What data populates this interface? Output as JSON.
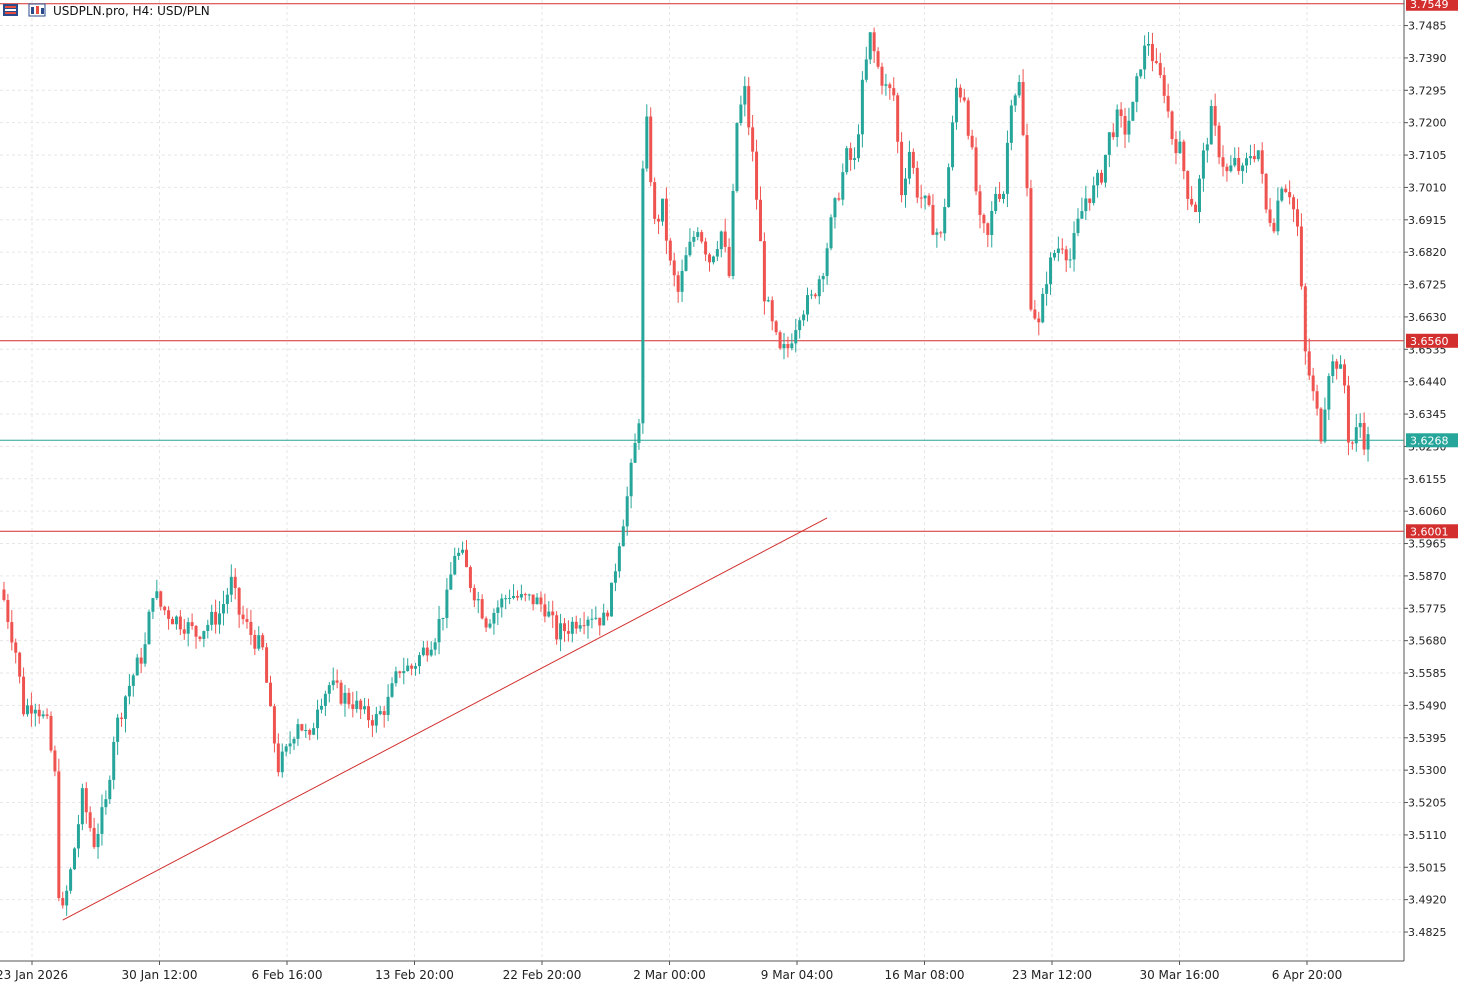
{
  "header": {
    "symbol_title": "USDPLN.pro, H4:  USD/PLN"
  },
  "colors": {
    "bull": "#26a69a",
    "bear": "#ef5350",
    "level_line": "#d32f2f",
    "current_line": "#26a69a",
    "grid": "#e6e6e6",
    "axis": "#555555"
  },
  "icons": [
    "bars-menu-icon",
    "chart-type-icon"
  ],
  "chart_data": {
    "type": "candlestick",
    "symbol": "USDPLN.pro",
    "timeframe": "H4",
    "description": "USD/PLN",
    "y_range": [
      3.474,
      3.756
    ],
    "price_labels": [
      "3.7485",
      "3.7390",
      "3.7295",
      "3.7200",
      "3.7105",
      "3.7010",
      "3.6915",
      "3.6820",
      "3.6725",
      "3.6630",
      "3.6535",
      "3.6440",
      "3.6345",
      "3.6250",
      "3.6155",
      "3.6060",
      "3.5965",
      "3.5870",
      "3.5775",
      "3.5680",
      "3.5585",
      "3.5490",
      "3.5395",
      "3.5300",
      "3.5205",
      "3.5110",
      "3.5015",
      "3.4920",
      "3.4825"
    ],
    "time_labels": [
      "23 Jan 2026",
      "30 Jan 12:00",
      "6 Feb 16:00",
      "13 Feb 20:00",
      "22 Feb 20:00",
      "2 Mar 00:00",
      "9 Mar 04:00",
      "16 Mar 08:00",
      "23 Mar 12:00",
      "30 Mar 16:00",
      "6 Apr 20:00"
    ],
    "horizontal_levels": [
      {
        "value": 3.7549,
        "label": "3.7549"
      },
      {
        "value": 3.656,
        "label": "3.6560"
      },
      {
        "value": 3.6001,
        "label": "3.6001"
      }
    ],
    "current_price": {
      "value": 3.6268,
      "label": "3.6268"
    },
    "trendline": {
      "from": {
        "bar": 15,
        "price": 3.486
      },
      "to": {
        "bar": 210,
        "price": 3.604
      }
    },
    "bars_shown": 340,
    "close_path": [
      [
        0,
        3.58
      ],
      [
        3,
        3.565
      ],
      [
        5,
        3.548
      ],
      [
        8,
        3.55
      ],
      [
        11,
        3.543
      ],
      [
        13,
        3.528
      ],
      [
        14,
        3.495
      ],
      [
        15,
        3.488
      ],
      [
        17,
        3.5
      ],
      [
        20,
        3.522
      ],
      [
        23,
        3.509
      ],
      [
        26,
        3.52
      ],
      [
        28,
        3.54
      ],
      [
        31,
        3.552
      ],
      [
        33,
        3.558
      ],
      [
        36,
        3.566
      ],
      [
        38,
        3.583
      ],
      [
        40,
        3.578
      ],
      [
        43,
        3.575
      ],
      [
        46,
        3.573
      ],
      [
        49,
        3.57
      ],
      [
        52,
        3.573
      ],
      [
        55,
        3.576
      ],
      [
        58,
        3.585
      ],
      [
        60,
        3.576
      ],
      [
        63,
        3.57
      ],
      [
        66,
        3.565
      ],
      [
        68,
        3.546
      ],
      [
        70,
        3.531
      ],
      [
        72,
        3.535
      ],
      [
        75,
        3.545
      ],
      [
        78,
        3.538
      ],
      [
        80,
        3.55
      ],
      [
        83,
        3.555
      ],
      [
        86,
        3.552
      ],
      [
        89,
        3.55
      ],
      [
        92,
        3.546
      ],
      [
        95,
        3.545
      ],
      [
        98,
        3.55
      ],
      [
        101,
        3.56
      ],
      [
        104,
        3.56
      ],
      [
        107,
        3.565
      ],
      [
        110,
        3.57
      ],
      [
        113,
        3.58
      ],
      [
        115,
        3.594
      ],
      [
        117,
        3.592
      ],
      [
        119,
        3.585
      ],
      [
        121,
        3.58
      ],
      [
        123,
        3.574
      ],
      [
        126,
        3.578
      ],
      [
        129,
        3.582
      ],
      [
        132,
        3.58
      ],
      [
        135,
        3.58
      ],
      [
        138,
        3.578
      ],
      [
        141,
        3.57
      ],
      [
        144,
        3.572
      ],
      [
        147,
        3.575
      ],
      [
        150,
        3.576
      ],
      [
        153,
        3.574
      ],
      [
        155,
        3.582
      ],
      [
        157,
        3.598
      ],
      [
        159,
        3.61
      ],
      [
        161,
        3.625
      ],
      [
        162,
        3.634
      ],
      [
        163,
        3.705
      ],
      [
        164,
        3.719
      ],
      [
        166,
        3.69
      ],
      [
        168,
        3.695
      ],
      [
        170,
        3.678
      ],
      [
        172,
        3.67
      ],
      [
        174,
        3.68
      ],
      [
        177,
        3.69
      ],
      [
        180,
        3.68
      ],
      [
        183,
        3.688
      ],
      [
        185,
        3.675
      ],
      [
        187,
        3.72
      ],
      [
        189,
        3.729
      ],
      [
        191,
        3.71
      ],
      [
        192,
        3.698
      ],
      [
        194,
        3.67
      ],
      [
        196,
        3.66
      ],
      [
        198,
        3.652
      ],
      [
        200,
        3.654
      ],
      [
        203,
        3.665
      ],
      [
        206,
        3.668
      ],
      [
        209,
        3.678
      ],
      [
        211,
        3.69
      ],
      [
        213,
        3.7
      ],
      [
        215,
        3.71
      ],
      [
        217,
        3.708
      ],
      [
        219,
        3.73
      ],
      [
        221,
        3.745
      ],
      [
        223,
        3.736
      ],
      [
        225,
        3.73
      ],
      [
        227,
        3.728
      ],
      [
        229,
        3.7
      ],
      [
        231,
        3.712
      ],
      [
        233,
        3.7
      ],
      [
        235,
        3.696
      ],
      [
        237,
        3.69
      ],
      [
        239,
        3.686
      ],
      [
        241,
        3.707
      ],
      [
        243,
        3.73
      ],
      [
        245,
        3.728
      ],
      [
        247,
        3.71
      ],
      [
        249,
        3.69
      ],
      [
        251,
        3.686
      ],
      [
        253,
        3.7
      ],
      [
        255,
        3.7
      ],
      [
        257,
        3.728
      ],
      [
        259,
        3.731
      ],
      [
        261,
        3.7
      ],
      [
        262,
        3.668
      ],
      [
        264,
        3.66
      ],
      [
        266,
        3.675
      ],
      [
        268,
        3.682
      ],
      [
        270,
        3.685
      ],
      [
        272,
        3.68
      ],
      [
        274,
        3.69
      ],
      [
        276,
        3.698
      ],
      [
        278,
        3.7
      ],
      [
        280,
        3.705
      ],
      [
        282,
        3.716
      ],
      [
        284,
        3.721
      ],
      [
        286,
        3.718
      ],
      [
        288,
        3.724
      ],
      [
        290,
        3.738
      ],
      [
        292,
        3.744
      ],
      [
        294,
        3.735
      ],
      [
        296,
        3.73
      ],
      [
        298,
        3.716
      ],
      [
        300,
        3.712
      ],
      [
        302,
        3.7
      ],
      [
        304,
        3.695
      ],
      [
        306,
        3.71
      ],
      [
        308,
        3.722
      ],
      [
        310,
        3.712
      ],
      [
        312,
        3.705
      ],
      [
        314,
        3.708
      ],
      [
        316,
        3.705
      ],
      [
        318,
        3.711
      ],
      [
        320,
        3.712
      ],
      [
        322,
        3.694
      ],
      [
        324,
        3.691
      ],
      [
        326,
        3.703
      ],
      [
        328,
        3.7
      ],
      [
        330,
        3.689
      ],
      [
        331,
        3.67
      ],
      [
        332,
        3.652
      ],
      [
        334,
        3.64
      ],
      [
        336,
        3.629
      ],
      [
        338,
        3.648
      ],
      [
        340,
        3.65
      ],
      [
        342,
        3.643
      ],
      [
        343,
        3.628
      ],
      [
        344,
        3.626
      ],
      [
        346,
        3.632
      ],
      [
        347,
        3.627
      ],
      [
        348,
        3.6268
      ]
    ]
  }
}
